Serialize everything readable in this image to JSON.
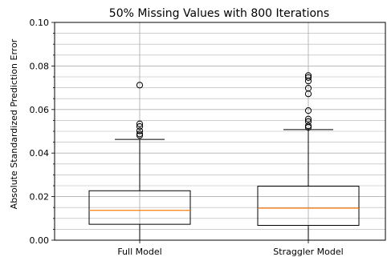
{
  "chart_data": {
    "type": "box",
    "title": "50% Missing Values with 800 Iterations",
    "xlabel": "",
    "ylabel": "Absolute Standardized Prediction Error",
    "categories": [
      "Full Model",
      "Straggler Model"
    ],
    "ylim": [
      0.0,
      0.1
    ],
    "yticks": [
      "0.00",
      "0.02",
      "0.04",
      "0.06",
      "0.08",
      "0.10"
    ],
    "grid": true,
    "boxes": [
      {
        "category": "Full Model",
        "whisker_low": 0.0,
        "q1": 0.0073,
        "median": 0.0137,
        "q3": 0.0227,
        "whisker_high": 0.0463,
        "outliers": [
          0.0481,
          0.0488,
          0.0502,
          0.0522,
          0.0534,
          0.0712
        ]
      },
      {
        "category": "Straggler Model",
        "whisker_low": 0.0,
        "q1": 0.0068,
        "median": 0.0147,
        "q3": 0.0248,
        "whisker_high": 0.0508,
        "outliers": [
          0.0518,
          0.0525,
          0.0545,
          0.0556,
          0.0595,
          0.0672,
          0.0698,
          0.0731,
          0.0747,
          0.0756
        ]
      }
    ],
    "colors": {
      "box": "#000000",
      "median": "#ff7f0e",
      "grid": "#b0b0b0"
    }
  }
}
